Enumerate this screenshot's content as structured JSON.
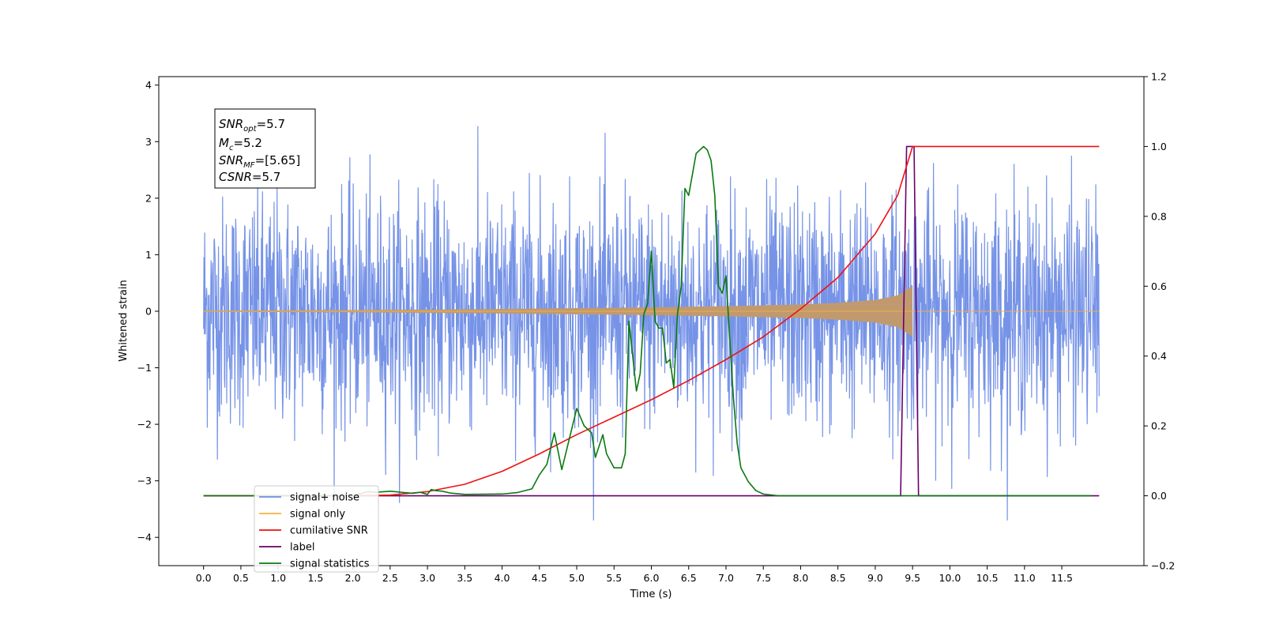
{
  "chart_data": {
    "type": "line",
    "xlabel": "Time (s)",
    "ylabel": "Whitened strain",
    "xlim": [
      -0.6,
      12.6
    ],
    "ylim": [
      -4.5,
      4.15
    ],
    "y2lim": [
      -0.2,
      1.2
    ],
    "x_ticks": [
      0.0,
      0.5,
      1.0,
      1.5,
      2.0,
      2.5,
      3.0,
      3.5,
      4.0,
      4.5,
      5.0,
      5.5,
      6.0,
      6.5,
      7.0,
      7.5,
      8.0,
      8.5,
      9.0,
      9.5,
      10.0,
      10.5,
      11.0,
      11.5
    ],
    "y_ticks": [
      4,
      3,
      2,
      1,
      0,
      -1,
      -2,
      -3,
      -4
    ],
    "y2_ticks": [
      1.2,
      1.0,
      0.8,
      0.6,
      0.4,
      0.2,
      0.0,
      -0.2
    ],
    "colors": {
      "signal_noise": "#6f8de6",
      "signal_only": "#f7b13f",
      "signal_only_fill": "#c09a6e",
      "cumulative_snr": "#ee1111",
      "label": "#6a006a",
      "signal_statistics": "#0a7a10"
    },
    "legend_placement": "lower-left",
    "annotation": {
      "line1_base": "SNR",
      "line1_sub": "opt",
      "line1_val": "=5.7",
      "line2_base": "M",
      "line2_sub": "c",
      "line2_val": "=5.2",
      "line3_base": "SNR",
      "line3_sub": "MF",
      "line3_val": "=[5.65]",
      "line4_base": "CSNR",
      "line4_val": "=5.7"
    },
    "series": [
      {
        "name": "signal+ noise",
        "axis": "left",
        "description_of_values": "whitened strain noise, amplitude roughly within [-3.6, 3.7]",
        "t_range": [
          0.0,
          12.0
        ],
        "std": 1.0
      },
      {
        "name": "signal only",
        "axis": "left",
        "envelope": {
          "t": [
            0.0,
            2.0,
            4.0,
            6.0,
            7.0,
            8.0,
            8.5,
            9.0,
            9.3,
            9.5
          ],
          "amp": [
            0.01,
            0.02,
            0.04,
            0.07,
            0.09,
            0.12,
            0.15,
            0.2,
            0.28,
            0.45
          ]
        },
        "t_end": 9.5
      },
      {
        "name": "cumilative SNR",
        "axis": "right",
        "x": [
          0.0,
          2.0,
          2.5,
          3.0,
          3.5,
          4.0,
          4.5,
          5.0,
          5.5,
          6.0,
          6.5,
          7.0,
          7.5,
          8.0,
          8.5,
          9.0,
          9.3,
          9.5,
          12.0
        ],
        "y": [
          0.0,
          0.0,
          0.002,
          0.012,
          0.033,
          0.07,
          0.12,
          0.175,
          0.225,
          0.275,
          0.33,
          0.39,
          0.455,
          0.535,
          0.625,
          0.75,
          0.86,
          1.0,
          1.0
        ]
      },
      {
        "name": "label",
        "axis": "right",
        "x": [
          0.0,
          9.34,
          9.42,
          9.52,
          9.58,
          12.0
        ],
        "y": [
          0.0,
          0.0,
          1.0,
          1.0,
          0.0,
          0.0
        ]
      },
      {
        "name": "signal statistics",
        "axis": "right",
        "x": [
          0.0,
          2.0,
          2.2,
          2.3,
          2.5,
          2.6,
          2.8,
          2.9,
          3.0,
          3.05,
          3.1,
          3.2,
          3.3,
          3.5,
          4.0,
          4.2,
          4.4,
          4.5,
          4.6,
          4.7,
          4.8,
          5.0,
          5.1,
          5.2,
          5.25,
          5.35,
          5.4,
          5.5,
          5.6,
          5.65,
          5.7,
          5.8,
          5.85,
          5.9,
          5.95,
          6.0,
          6.05,
          6.1,
          6.15,
          6.2,
          6.25,
          6.3,
          6.35,
          6.4,
          6.45,
          6.5,
          6.55,
          6.6,
          6.65,
          6.7,
          6.75,
          6.8,
          6.85,
          6.9,
          6.95,
          7.0,
          7.05,
          7.1,
          7.15,
          7.2,
          7.3,
          7.4,
          7.5,
          7.7,
          8.0,
          12.0
        ],
        "y": [
          0.0,
          0.0,
          0.012,
          0.01,
          0.013,
          0.011,
          0.007,
          0.01,
          0.004,
          0.018,
          0.015,
          0.013,
          0.008,
          0.004,
          0.005,
          0.009,
          0.02,
          0.06,
          0.09,
          0.18,
          0.075,
          0.25,
          0.2,
          0.18,
          0.11,
          0.175,
          0.12,
          0.08,
          0.08,
          0.12,
          0.5,
          0.3,
          0.35,
          0.52,
          0.55,
          0.7,
          0.5,
          0.48,
          0.48,
          0.38,
          0.39,
          0.31,
          0.52,
          0.6,
          0.88,
          0.86,
          0.92,
          0.98,
          0.99,
          1.0,
          0.99,
          0.96,
          0.86,
          0.6,
          0.58,
          0.63,
          0.45,
          0.28,
          0.15,
          0.08,
          0.04,
          0.015,
          0.005,
          0.0,
          0.0,
          0.0
        ],
        "x_end": 11.9
      }
    ],
    "legend": [
      {
        "label": "signal+ noise",
        "color": "#6f8de6"
      },
      {
        "label": "signal only",
        "color": "#f7b13f"
      },
      {
        "label": "cumilative SNR",
        "color": "#ee1111"
      },
      {
        "label": "label",
        "color": "#6a006a"
      },
      {
        "label": "signal statistics",
        "color": "#0a7a10"
      }
    ]
  }
}
